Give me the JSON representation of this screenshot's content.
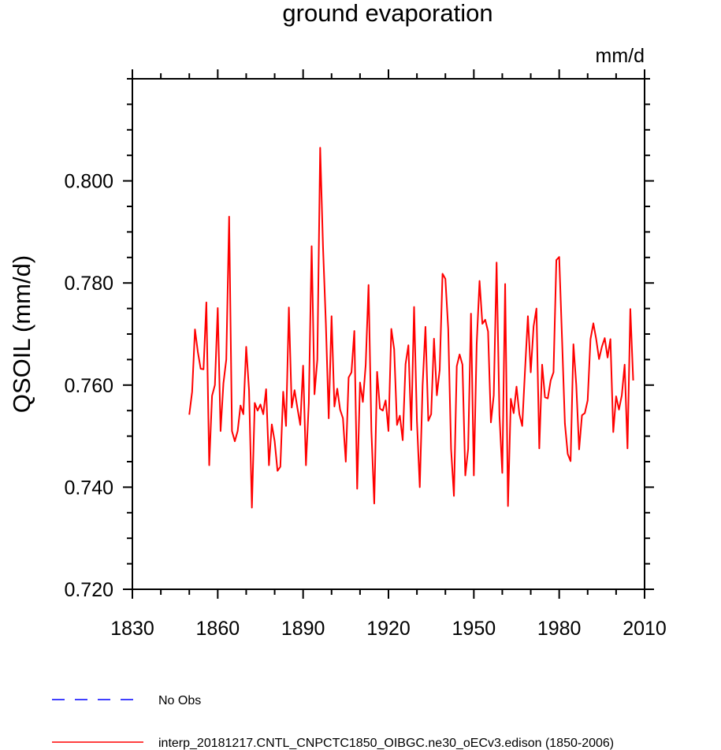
{
  "chart_data": {
    "type": "line",
    "title": "ground evaporation",
    "units": "mm/d",
    "ylabel": "QSOIL  (mm/d)",
    "xlabel": "",
    "xlim": [
      1830,
      2010
    ],
    "ylim": [
      0.72,
      0.82
    ],
    "xticks": [
      1830,
      1860,
      1890,
      1920,
      1950,
      1980,
      2010
    ],
    "xtick_labels": [
      "1830",
      "1860",
      "1890",
      "1920",
      "1950",
      "1980",
      "2010"
    ],
    "yticks": [
      0.72,
      0.74,
      0.76,
      0.78,
      0.8
    ],
    "ytick_labels": [
      "0.720",
      "0.740",
      "0.760",
      "0.780",
      "0.800"
    ],
    "grid": false,
    "legend_position": "bottom",
    "series": [
      {
        "name": "interp_20181217.CNTL_CNPCTC1850_OIBGC.ne30_oECv3.edison (1850-2006)",
        "color": "#ff0000",
        "style": "solid",
        "x_start": 1850,
        "x_step": 1,
        "values": [
          0.7542,
          0.7587,
          0.7709,
          0.7665,
          0.7632,
          0.7631,
          0.7762,
          0.7443,
          0.7579,
          0.76,
          0.7751,
          0.751,
          0.7604,
          0.765,
          0.793,
          0.751,
          0.749,
          0.751,
          0.756,
          0.7543,
          0.7675,
          0.759,
          0.736,
          0.7565,
          0.755,
          0.7562,
          0.7543,
          0.7592,
          0.7443,
          0.7523,
          0.749,
          0.7432,
          0.744,
          0.7587,
          0.752,
          0.7752,
          0.7556,
          0.759,
          0.7555,
          0.7522,
          0.7638,
          0.7443,
          0.7565,
          0.7872,
          0.7582,
          0.765,
          0.8065,
          0.787,
          0.772,
          0.7535,
          0.7735,
          0.7558,
          0.7593,
          0.7552,
          0.7535,
          0.745,
          0.7615,
          0.7625,
          0.7706,
          0.7397,
          0.7605,
          0.7567,
          0.764,
          0.7796,
          0.751,
          0.7368,
          0.7626,
          0.7554,
          0.755,
          0.757,
          0.751,
          0.771,
          0.767,
          0.7522,
          0.754,
          0.7492,
          0.7641,
          0.7678,
          0.7512,
          0.7753,
          0.753,
          0.74,
          0.76,
          0.7714,
          0.753,
          0.7543,
          0.7691,
          0.758,
          0.763,
          0.7818,
          0.7808,
          0.771,
          0.7475,
          0.7383,
          0.7637,
          0.766,
          0.764,
          0.7423,
          0.7475,
          0.774,
          0.7423,
          0.768,
          0.7804,
          0.772,
          0.7728,
          0.7705,
          0.7527,
          0.758,
          0.784,
          0.7541,
          0.7428,
          0.7798,
          0.7363,
          0.7573,
          0.7545,
          0.7597,
          0.7543,
          0.752,
          0.763,
          0.7735,
          0.7625,
          0.7715,
          0.775,
          0.7476,
          0.764,
          0.7576,
          0.7574,
          0.7609,
          0.7625,
          0.7845,
          0.7851,
          0.769,
          0.7525,
          0.7465,
          0.7451,
          0.768,
          0.76,
          0.7474,
          0.7541,
          0.7545,
          0.757,
          0.769,
          0.7721,
          0.769,
          0.7651,
          0.7675,
          0.7692,
          0.7654,
          0.769,
          0.7508,
          0.7578,
          0.7552,
          0.758,
          0.764,
          0.7476,
          0.7749,
          0.7609
        ]
      }
    ],
    "legend": [
      {
        "label": "No Obs",
        "color": "#0000ff",
        "style": "dashed"
      },
      {
        "label": "interp_20181217.CNTL_CNPCTC1850_OIBGC.ne30_oECv3.edison (1850-2006)",
        "color": "#ff0000",
        "style": "solid"
      }
    ]
  }
}
